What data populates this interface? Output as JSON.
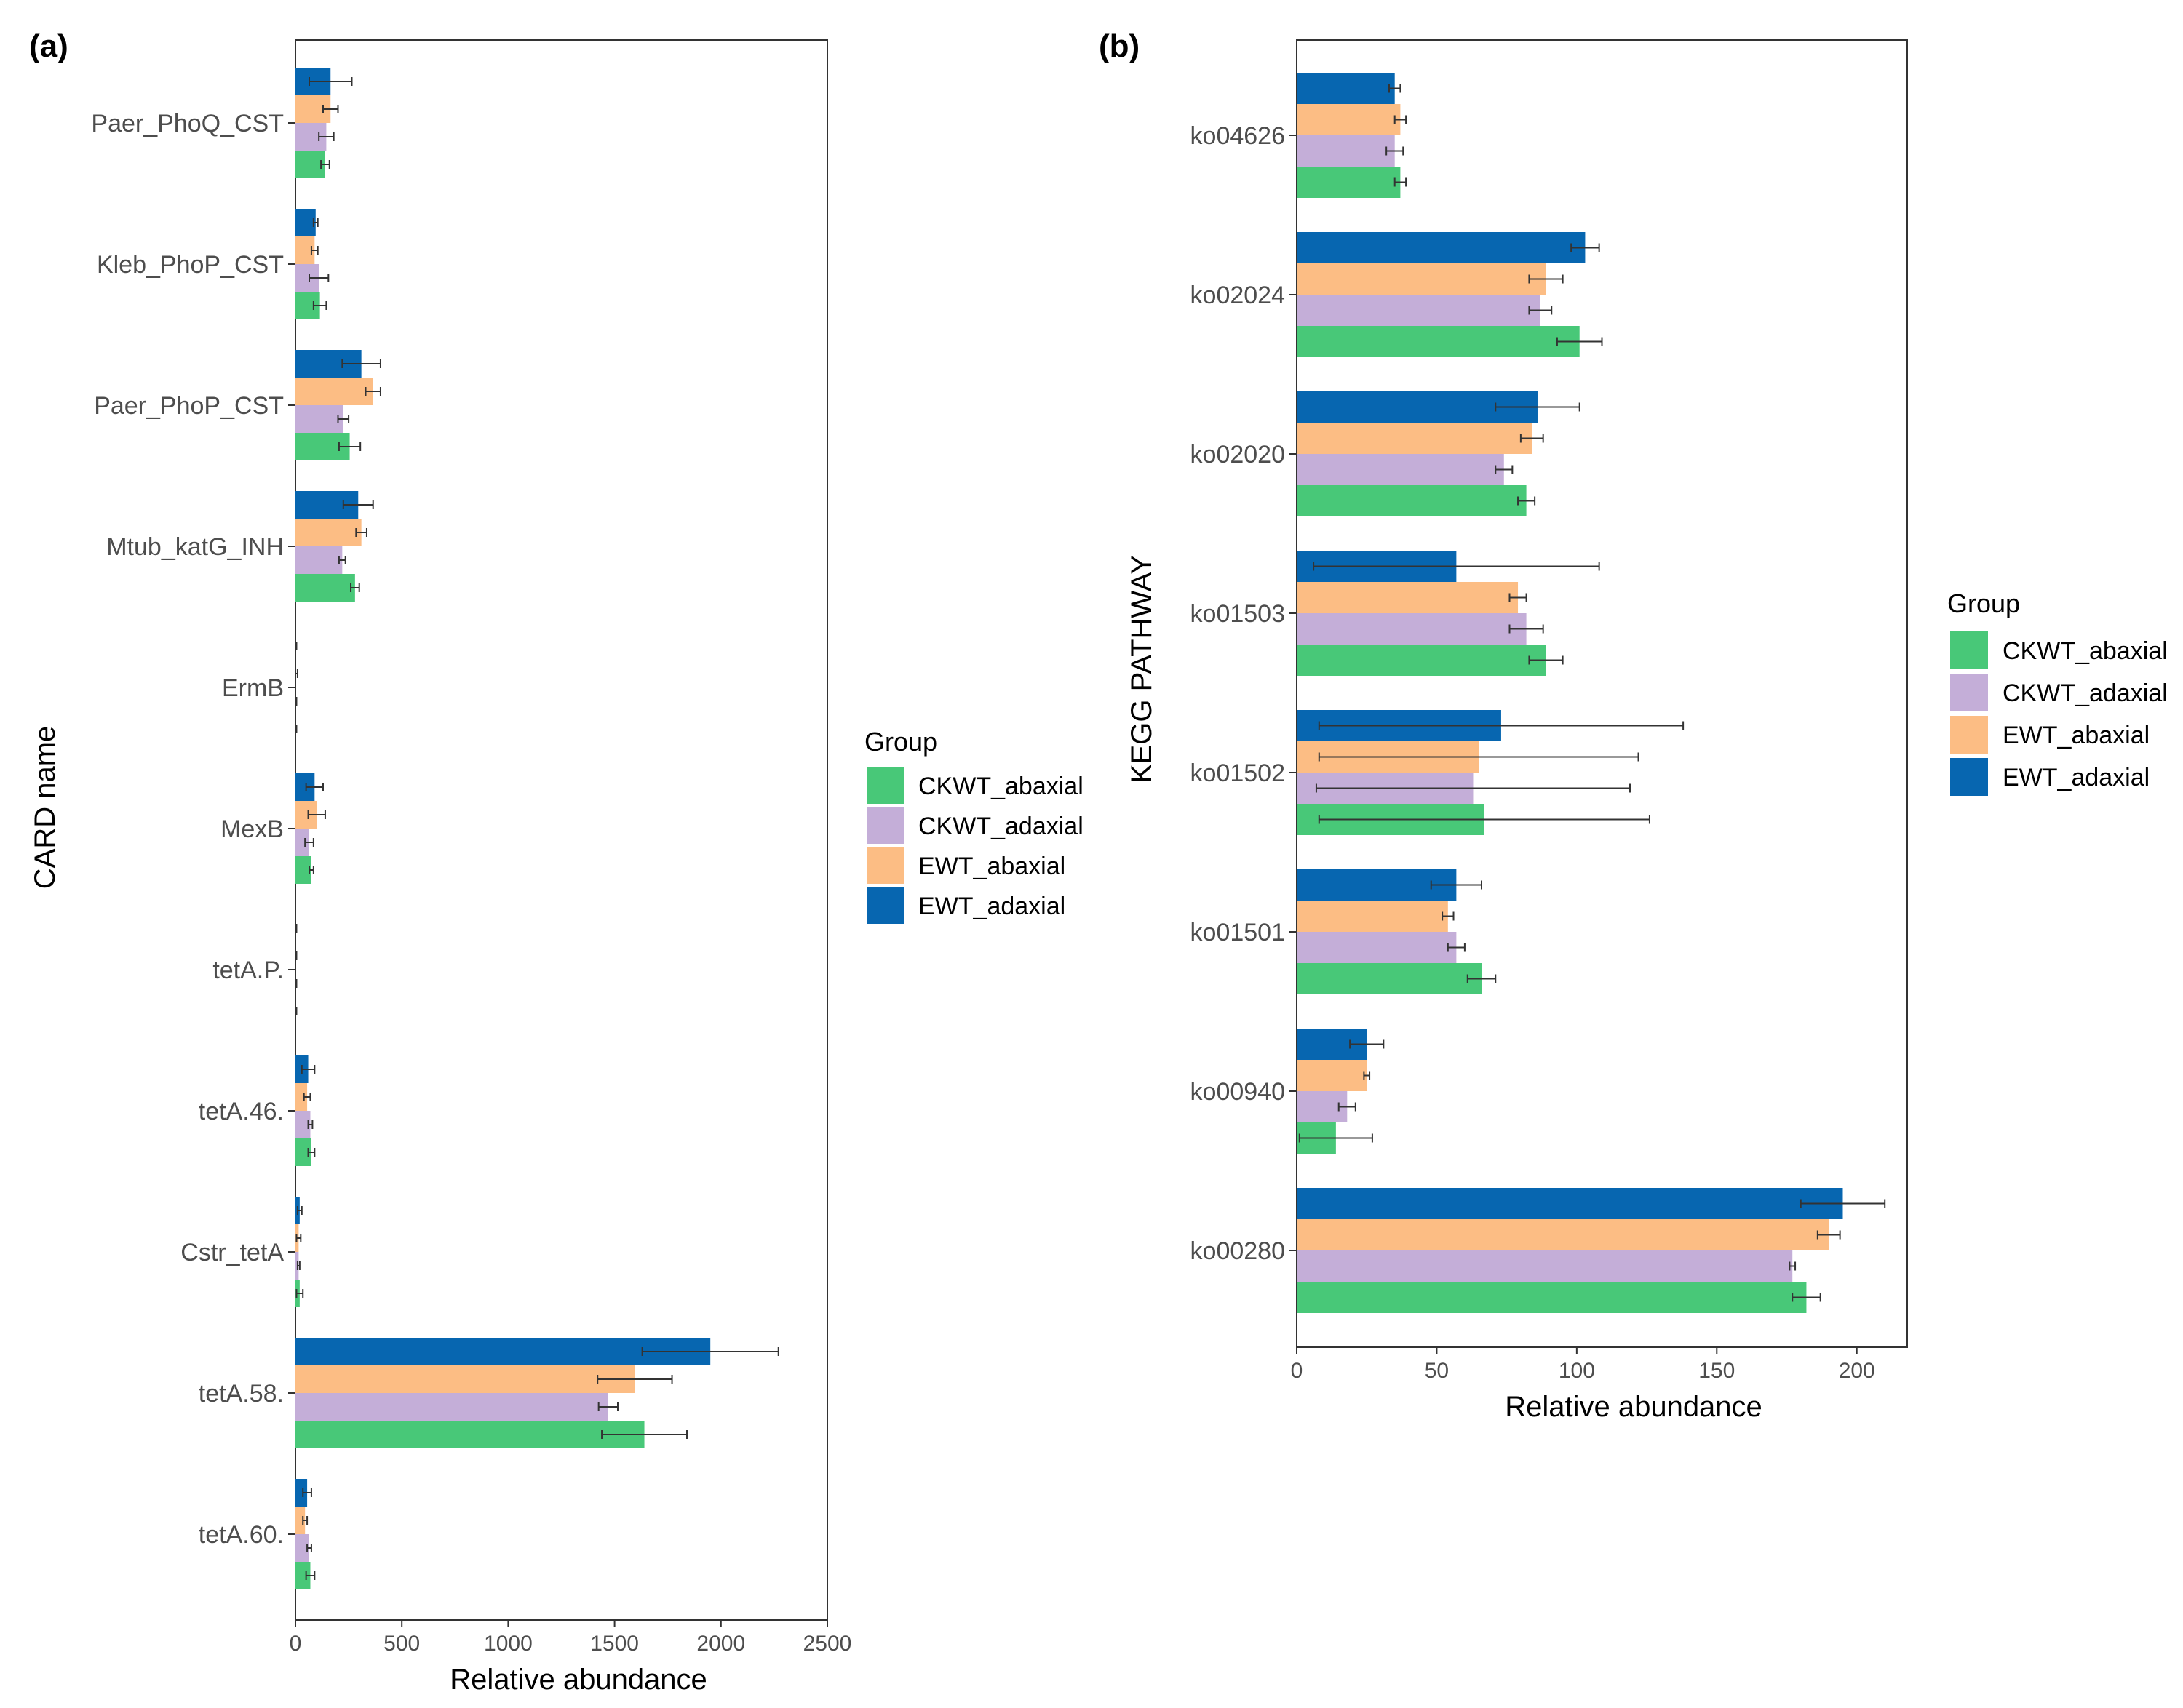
{
  "chart_data": [
    {
      "panel_label": "(a)",
      "type": "bar",
      "orientation": "horizontal",
      "xlabel": "Relative abundance",
      "ylabel": "CARD name",
      "xlim": [
        0,
        2500
      ],
      "xticks": [
        "0",
        "500",
        "1000",
        "1500",
        "2000",
        "2500"
      ],
      "categories": [
        "Paer_PhoQ_CST",
        "Kleb_PhoP_CST",
        "Paer_PhoP_CST",
        "Mtub_katG_INH",
        "ErmB",
        "MexB",
        "tetA.P.",
        "tetA.46.",
        "Cstr_tetA",
        "tetA.58.",
        "tetA.60."
      ],
      "series": [
        {
          "name": "EWT_adaxial",
          "values": [
            165,
            95,
            310,
            295,
            0,
            90,
            0,
            60,
            20,
            1950,
            55
          ],
          "errors": [
            100,
            10,
            90,
            70,
            5,
            40,
            5,
            30,
            10,
            320,
            20
          ]
        },
        {
          "name": "EWT_abaxial",
          "values": [
            165,
            90,
            365,
            310,
            0,
            100,
            0,
            55,
            15,
            1595,
            45
          ],
          "errors": [
            35,
            15,
            35,
            25,
            10,
            40,
            5,
            15,
            10,
            175,
            10
          ]
        },
        {
          "name": "CKWT_adaxial",
          "values": [
            145,
            110,
            225,
            220,
            0,
            65,
            0,
            70,
            15,
            1470,
            65
          ],
          "errors": [
            35,
            45,
            25,
            15,
            5,
            20,
            5,
            10,
            5,
            45,
            10
          ]
        },
        {
          "name": "CKWT_abaxial",
          "values": [
            140,
            115,
            255,
            280,
            0,
            75,
            0,
            75,
            20,
            1640,
            70
          ],
          "errors": [
            20,
            30,
            50,
            20,
            5,
            10,
            5,
            15,
            15,
            200,
            20
          ]
        }
      ]
    },
    {
      "panel_label": "(b)",
      "type": "bar",
      "orientation": "horizontal",
      "xlabel": "Relative abundance",
      "ylabel": "KEGG PATHWAY",
      "xlim": [
        0,
        218
      ],
      "xticks": [
        "0",
        "50",
        "100",
        "150",
        "200"
      ],
      "categories": [
        "ko04626",
        "ko02024",
        "ko02020",
        "ko01503",
        "ko01502",
        "ko01501",
        "ko00940",
        "ko00280"
      ],
      "series": [
        {
          "name": "EWT_adaxial",
          "values": [
            35,
            103,
            86,
            57,
            73,
            57,
            25,
            195
          ],
          "errors": [
            2,
            5,
            15,
            51,
            65,
            9,
            6,
            15
          ]
        },
        {
          "name": "EWT_abaxial",
          "values": [
            37,
            89,
            84,
            79,
            65,
            54,
            25,
            190
          ],
          "errors": [
            2,
            6,
            4,
            3,
            57,
            2,
            1,
            4
          ]
        },
        {
          "name": "CKWT_adaxial",
          "values": [
            35,
            87,
            74,
            82,
            63,
            57,
            18,
            177
          ],
          "errors": [
            3,
            4,
            3,
            6,
            56,
            3,
            3,
            1
          ]
        },
        {
          "name": "CKWT_abaxial",
          "values": [
            37,
            101,
            82,
            89,
            67,
            66,
            14,
            182
          ],
          "errors": [
            2,
            8,
            3,
            6,
            59,
            5,
            13,
            5
          ]
        }
      ]
    }
  ],
  "legend": {
    "title": "Group",
    "items": [
      "CKWT_abaxial",
      "CKWT_adaxial",
      "EWT_abaxial",
      "EWT_adaxial"
    ]
  },
  "colors": {
    "CKWT_abaxial": "#48c878",
    "CKWT_adaxial": "#c4aed8",
    "EWT_abaxial": "#fcbd84",
    "EWT_adaxial": "#0766b0",
    "error_bar": "#333333",
    "panel_border": "#333333"
  }
}
